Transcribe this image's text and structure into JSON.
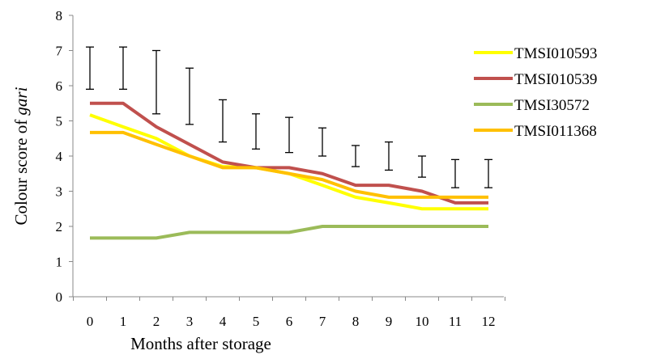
{
  "chart_data": {
    "type": "line",
    "xlabel": "Months after storage",
    "ylabel": {
      "prefix": "Colour score of ",
      "italic": "gari"
    },
    "x": [
      0,
      1,
      2,
      3,
      4,
      5,
      6,
      7,
      8,
      9,
      10,
      11,
      12
    ],
    "ylim": [
      0,
      8
    ],
    "yticks": [
      0,
      1,
      2,
      3,
      4,
      5,
      6,
      7,
      8
    ],
    "grid": false,
    "legend_position": "right",
    "series": [
      {
        "name": "TMSI010593",
        "color": "#FFFF00",
        "values": [
          5.17,
          4.83,
          4.5,
          4.0,
          3.7,
          3.67,
          3.5,
          3.17,
          2.83,
          2.67,
          2.5,
          2.5,
          2.5
        ]
      },
      {
        "name": "TMSI010539",
        "color": "#C0504D",
        "values": [
          5.5,
          5.5,
          4.83,
          4.33,
          3.83,
          3.67,
          3.67,
          3.5,
          3.17,
          3.17,
          3.0,
          2.67,
          2.67
        ]
      },
      {
        "name": "TMSI30572",
        "color": "#9BBB59",
        "values": [
          1.67,
          1.67,
          1.67,
          1.83,
          1.83,
          1.83,
          1.83,
          2.0,
          2.0,
          2.0,
          2.0,
          2.0,
          2.0
        ]
      },
      {
        "name": "TMSI011368",
        "color": "#FFC000",
        "values": [
          4.67,
          4.67,
          4.33,
          4.0,
          3.67,
          3.67,
          3.5,
          3.33,
          3.0,
          2.83,
          2.83,
          2.83,
          2.83
        ]
      }
    ],
    "error_bars": [
      {
        "x": 0,
        "low": 5.9,
        "high": 7.1
      },
      {
        "x": 1,
        "low": 5.9,
        "high": 7.1
      },
      {
        "x": 2,
        "low": 5.2,
        "high": 7.0
      },
      {
        "x": 3,
        "low": 4.9,
        "high": 6.5
      },
      {
        "x": 4,
        "low": 4.4,
        "high": 5.6
      },
      {
        "x": 5,
        "low": 4.2,
        "high": 5.2
      },
      {
        "x": 6,
        "low": 4.1,
        "high": 5.1
      },
      {
        "x": 7,
        "low": 4.0,
        "high": 4.8
      },
      {
        "x": 8,
        "low": 3.7,
        "high": 4.3
      },
      {
        "x": 9,
        "low": 3.6,
        "high": 4.4
      },
      {
        "x": 10,
        "low": 3.4,
        "high": 4.0
      },
      {
        "x": 11,
        "low": 3.1,
        "high": 3.9
      },
      {
        "x": 12,
        "low": 3.1,
        "high": 3.9
      }
    ]
  }
}
